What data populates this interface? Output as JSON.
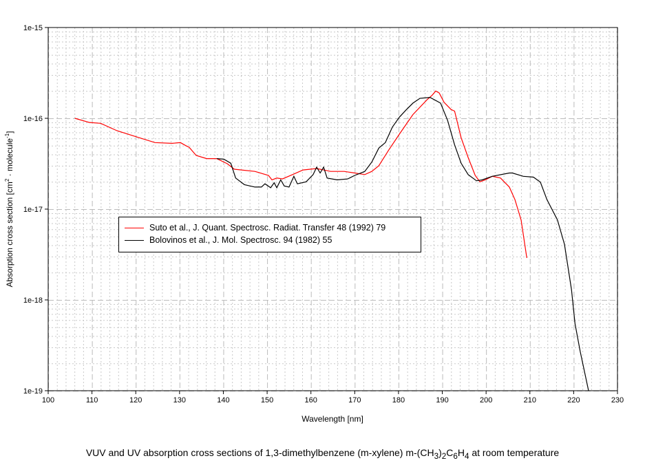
{
  "chart_data": {
    "type": "line",
    "title": "",
    "xlabel": "Wavelength [nm]",
    "ylabel": "Absorption cross section [cm² · molecule⁻¹]",
    "ylabel_parts": {
      "a": "Absorption cross section [cm",
      "sup1": "2",
      "b": " · molecule",
      "sup2": "-1",
      "c": "]"
    },
    "xlim": [
      100,
      230
    ],
    "ylim": [
      1e-19,
      1e-15
    ],
    "yscale": "log",
    "grid": true,
    "legend_position": "center-left",
    "x_ticks": [
      "100",
      "110",
      "120",
      "130",
      "140",
      "150",
      "160",
      "170",
      "180",
      "190",
      "200",
      "210",
      "220",
      "230"
    ],
    "y_ticks": [
      "1e-15",
      "1e-16",
      "1e-17",
      "1e-18",
      "1e-19"
    ],
    "series": [
      {
        "name": "Suto et al., J. Quant. Spectrosc. Radiat. Transfer 48 (1992) 79",
        "color": "#ff0000",
        "x": [
          106.1,
          109.4,
          112,
          115.7,
          120.4,
          124.4,
          128.3,
          130.2,
          131.4,
          132.2,
          133.8,
          136.2,
          138.5,
          140.9,
          142.5,
          147.2,
          150.3,
          151.1,
          152.2,
          153.5,
          155.8,
          158.2,
          161.3,
          162.9,
          164.5,
          167.6,
          170,
          172.3,
          173.9,
          175.5,
          177.8,
          180.2,
          183.3,
          186.5,
          187.7,
          188.5,
          189.3,
          190.4,
          192,
          192.8,
          194.3,
          195.9,
          197.5,
          198.6,
          199.8,
          201.4,
          203.3,
          205.3,
          206.6,
          208,
          209.3
        ],
        "y": [
          1e-16,
          9e-17,
          8.8e-17,
          7.3e-17,
          6.2e-17,
          5.4e-17,
          5.3e-17,
          5.4e-17,
          5e-17,
          4.8e-17,
          3.9e-17,
          3.6e-17,
          3.6e-17,
          3.16e-17,
          2.75e-17,
          2.6e-17,
          2.35e-17,
          2.1e-17,
          2.2e-17,
          2.15e-17,
          2.4e-17,
          2.7e-17,
          2.8e-17,
          2.7e-17,
          2.6e-17,
          2.6e-17,
          2.5e-17,
          2.4e-17,
          2.6e-17,
          3e-17,
          4.5e-17,
          6.7e-17,
          1.1e-16,
          1.6e-16,
          1.8e-16,
          2e-16,
          1.9e-16,
          1.5e-16,
          1.25e-16,
          1.2e-16,
          6.1e-17,
          3.7e-17,
          2.35e-17,
          2e-17,
          2.1e-17,
          2.3e-17,
          2.2e-17,
          1.75e-17,
          1.27e-17,
          7.6e-18,
          2.9e-18
        ]
      },
      {
        "name": "Bolovinos et al., J. Mol. Spectrosc. 94 (1982) 55",
        "color": "#000000",
        "x": [
          138.5,
          140.1,
          141.7,
          142.8,
          144.8,
          147.2,
          148.7,
          149.5,
          150.8,
          151.6,
          152.2,
          153.1,
          153.9,
          155,
          156.1,
          156.9,
          158.9,
          160.5,
          161.3,
          162.1,
          162.9,
          163.7,
          166,
          168.4,
          170,
          172.3,
          173.9,
          175.5,
          177,
          178.6,
          180.2,
          181.7,
          183.3,
          184.9,
          187.2,
          189.6,
          191.2,
          192.8,
          194.3,
          195.9,
          197.8,
          199.1,
          201.4,
          205.3,
          206,
          208.5,
          210.8,
          212.4,
          213.9,
          216.3,
          217.9,
          219.5,
          220.3,
          221.5,
          223.4
        ],
        "y": [
          3.6e-17,
          3.55e-17,
          3.2e-17,
          2.2e-17,
          1.86e-17,
          1.75e-17,
          1.75e-17,
          1.9e-17,
          1.72e-17,
          1.95e-17,
          1.72e-17,
          2.1e-17,
          1.8e-17,
          1.75e-17,
          2.3e-17,
          1.9e-17,
          2e-17,
          2.4e-17,
          2.9e-17,
          2.5e-17,
          2.9e-17,
          2.2e-17,
          2.1e-17,
          2.15e-17,
          2.35e-17,
          2.6e-17,
          3.3e-17,
          4.7e-17,
          5.4e-17,
          8e-17,
          1.03e-16,
          1.23e-16,
          1.47e-16,
          1.66e-16,
          1.7e-16,
          1.47e-16,
          9.5e-17,
          5.1e-17,
          3.2e-17,
          2.4e-17,
          2.05e-17,
          2.1e-17,
          2.3e-17,
          2.5e-17,
          2.5e-17,
          2.3e-17,
          2.25e-17,
          1.98e-17,
          1.27e-17,
          7.6e-18,
          4.1e-18,
          1.3e-18,
          5.5e-19,
          2.7e-19,
          1e-19
        ]
      }
    ]
  },
  "caption": {
    "a": "VUV and UV absorption cross sections of 1,3-dimethylbenzene (m-xylene) m-(CH",
    "s1": "3",
    "b": ")",
    "s2": "2",
    "c": "C",
    "s3": "6",
    "d": "H",
    "s4": "4",
    "e": " at room temperature"
  }
}
